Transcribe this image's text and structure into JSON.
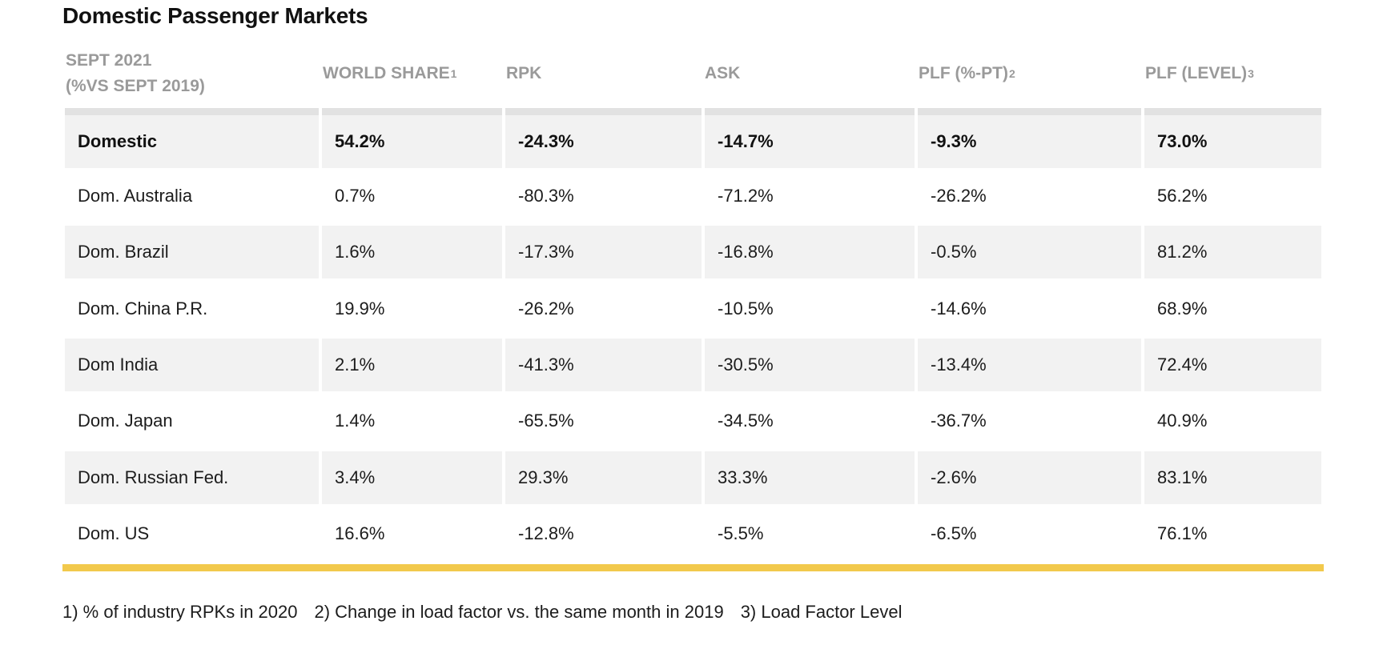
{
  "title": "Domestic Passenger Markets",
  "header": {
    "period_line1": "SEPT 2021",
    "period_line2": "(%VS SEPT 2019)",
    "world_share": "WORLD SHARE",
    "world_share_note": "1",
    "rpk": "RPK",
    "ask": "ASK",
    "plf_pt": "PLF (%-PT)",
    "plf_pt_note": "2",
    "plf_level": "PLF (LEVEL)",
    "plf_level_note": "3"
  },
  "rows": [
    {
      "market": "Domestic",
      "world_share": "54.2%",
      "rpk": "-24.3%",
      "ask": "-14.7%",
      "plf_pt": "-9.3%",
      "plf_level": "73.0%"
    },
    {
      "market": "Dom. Australia",
      "world_share": "0.7%",
      "rpk": "-80.3%",
      "ask": "-71.2%",
      "plf_pt": "-26.2%",
      "plf_level": "56.2%"
    },
    {
      "market": "Dom. Brazil",
      "world_share": "1.6%",
      "rpk": "-17.3%",
      "ask": "-16.8%",
      "plf_pt": "-0.5%",
      "plf_level": "81.2%"
    },
    {
      "market": "Dom. China P.R.",
      "world_share": "19.9%",
      "rpk": "-26.2%",
      "ask": "-10.5%",
      "plf_pt": "-14.6%",
      "plf_level": "68.9%"
    },
    {
      "market": "Dom India",
      "world_share": "2.1%",
      "rpk": "-41.3%",
      "ask": "-30.5%",
      "plf_pt": "-13.4%",
      "plf_level": "72.4%"
    },
    {
      "market": "Dom. Japan",
      "world_share": "1.4%",
      "rpk": "-65.5%",
      "ask": "-34.5%",
      "plf_pt": "-36.7%",
      "plf_level": "40.9%"
    },
    {
      "market": "Dom. Russian Fed.",
      "world_share": "3.4%",
      "rpk": "29.3%",
      "ask": "33.3%",
      "plf_pt": "-2.6%",
      "plf_level": "83.1%"
    },
    {
      "market": "Dom. US",
      "world_share": "16.6%",
      "rpk": "-12.8%",
      "ask": "-5.5%",
      "plf_pt": "-6.5%",
      "plf_level": "76.1%"
    }
  ],
  "footnotes": [
    "1) % of industry RPKs in 2020",
    "2) Change in load factor vs. the same month in 2019",
    "3) Load Factor Level"
  ],
  "colors": {
    "accent_rule": "#f2c94c",
    "row_shade": "#f2f2f2",
    "header_text": "#9a9a9a"
  }
}
